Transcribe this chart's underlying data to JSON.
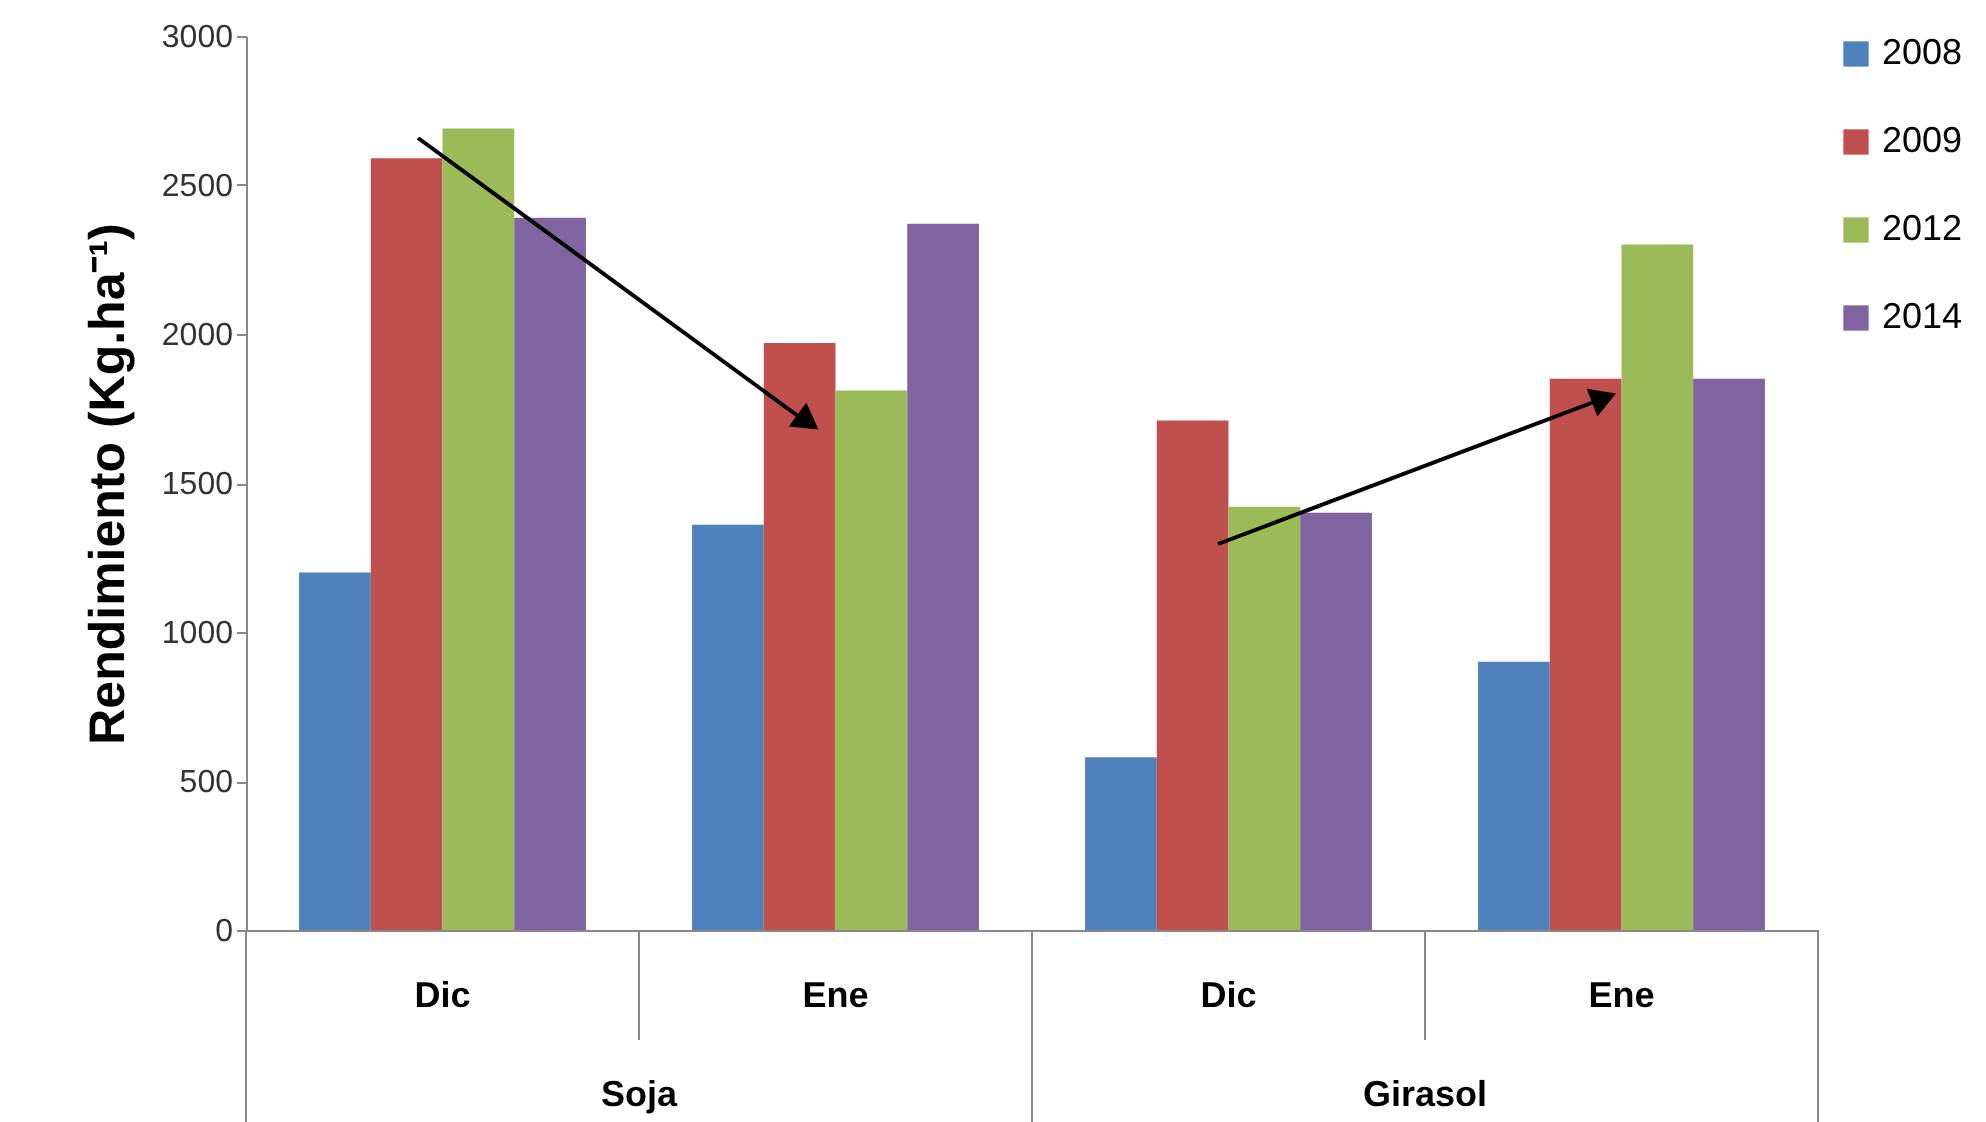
{
  "chart_data": {
    "type": "bar",
    "ylabel": "Rendimiento (Kg.ha⁻¹)",
    "categories": [
      "Dic",
      "Ene",
      "Dic",
      "Ene"
    ],
    "annotations": [
      "Soja",
      "Girasol"
    ],
    "series": [
      {
        "name": "2008",
        "color": "#4f81bd",
        "values": [
          1200,
          1360,
          580,
          900
        ]
      },
      {
        "name": "2009",
        "color": "#c0504d",
        "values": [
          2590,
          1970,
          1710,
          1850
        ]
      },
      {
        "name": "2012",
        "color": "#9bbb59",
        "values": [
          2690,
          1810,
          1420,
          2300
        ]
      },
      {
        "name": "2014",
        "color": "#8064a2",
        "values": [
          2390,
          2370,
          1400,
          1850
        ]
      }
    ],
    "ylim": [
      0,
      3000
    ],
    "yticks": [
      0,
      500,
      1000,
      1500,
      2000,
      2500,
      3000
    ],
    "grid": false,
    "legend": "right"
  }
}
